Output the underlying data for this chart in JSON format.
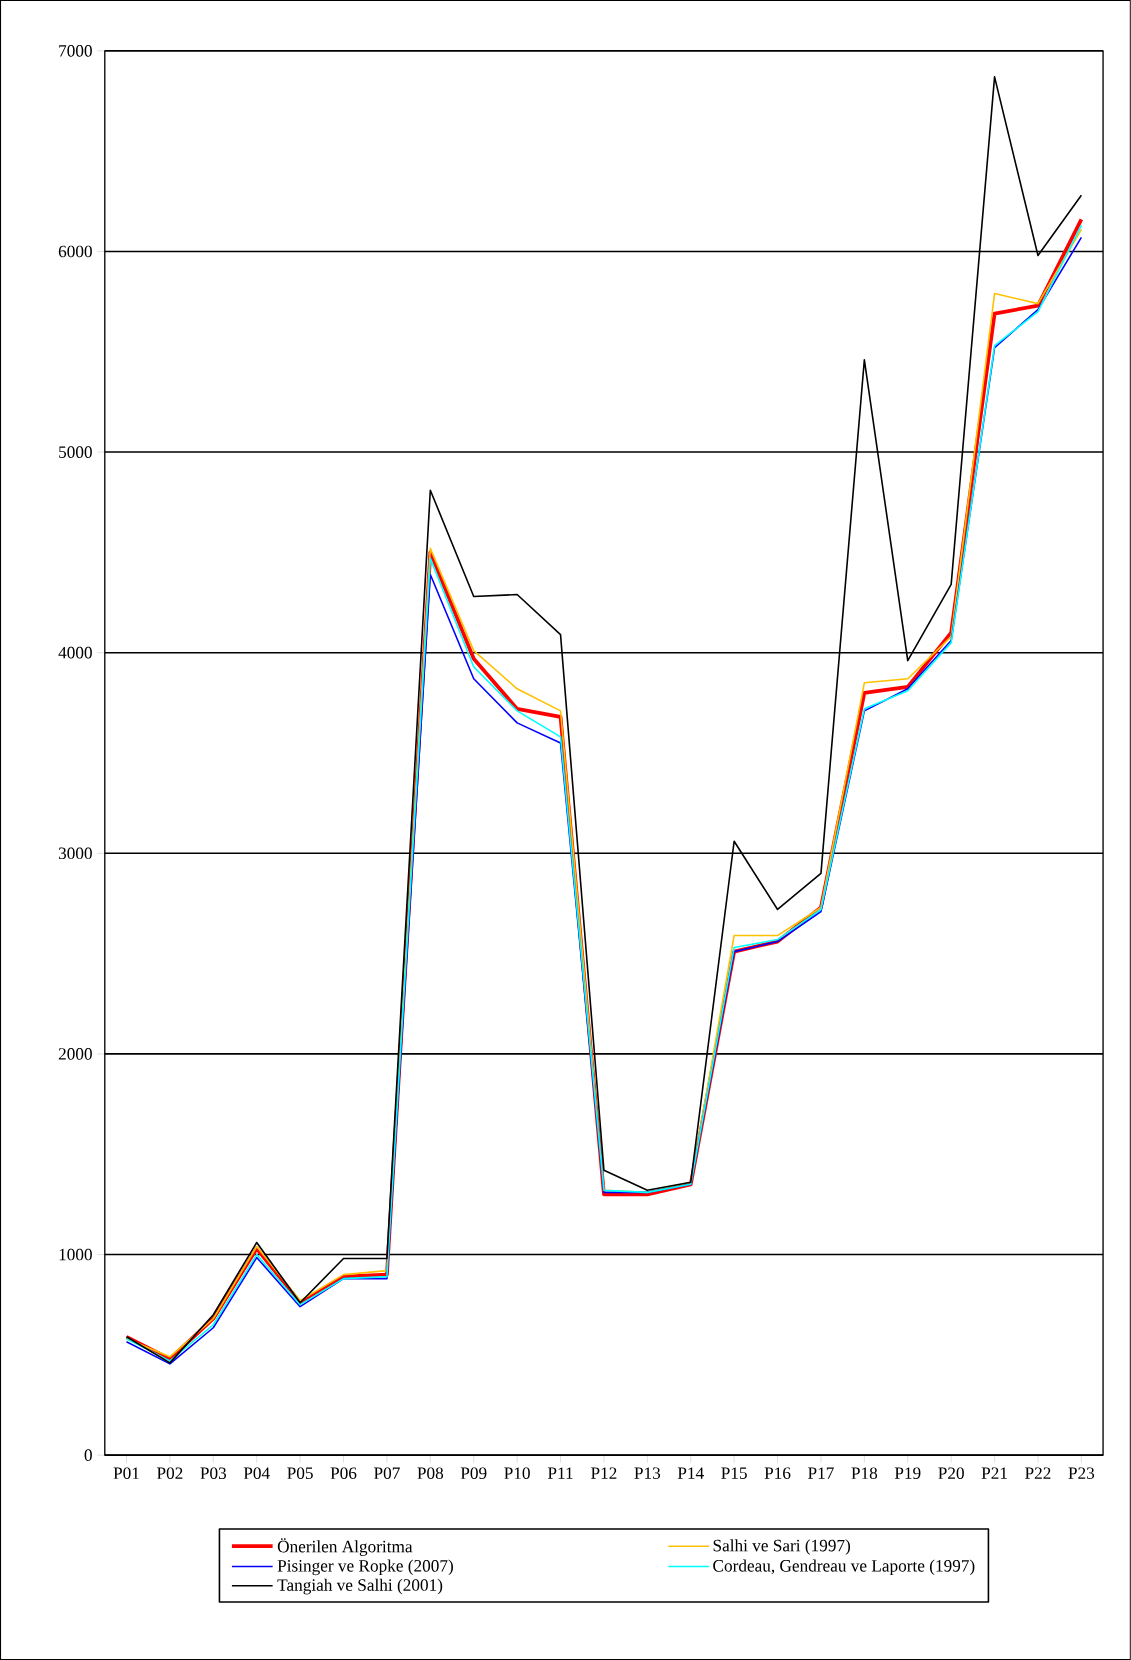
{
  "chart_data": {
    "type": "line",
    "categories": [
      "P01",
      "P02",
      "P03",
      "P04",
      "P05",
      "P06",
      "P07",
      "P08",
      "P09",
      "P10",
      "P11",
      "P12",
      "P13",
      "P14",
      "P15",
      "P16",
      "P17",
      "P18",
      "P19",
      "P20",
      "P21",
      "P22",
      "P23"
    ],
    "series": [
      {
        "name": "Önerilen Algoritma",
        "color": "#ff0000",
        "values": [
          590,
          480,
          680,
          1030,
          760,
          890,
          900,
          4500,
          3970,
          3720,
          3680,
          1300,
          1300,
          1350,
          2510,
          2560,
          2730,
          3800,
          3830,
          4100,
          5690,
          5730,
          6160
        ]
      },
      {
        "name": "Salhi ve Sari (1997)",
        "color": "#ffc000",
        "values": [
          580,
          490,
          680,
          1040,
          770,
          900,
          920,
          4520,
          4010,
          3820,
          3710,
          1320,
          1310,
          1360,
          2590,
          2590,
          2730,
          3850,
          3870,
          4080,
          5790,
          5740,
          6110
        ]
      },
      {
        "name": "Pisinger ve Ropke (2007)",
        "color": "#0000ff",
        "values": [
          565,
          455,
          635,
          985,
          740,
          880,
          880,
          4390,
          3870,
          3650,
          3550,
          1310,
          1310,
          1350,
          2510,
          2560,
          2710,
          3710,
          3820,
          4060,
          5520,
          5710,
          6070
        ]
      },
      {
        "name": "Cordeau, Gendreau ve Laporte (1997)",
        "color": "#00ffff",
        "values": [
          580,
          470,
          650,
          1000,
          750,
          880,
          890,
          4470,
          3930,
          3710,
          3580,
          1320,
          1310,
          1350,
          2530,
          2570,
          2720,
          3720,
          3810,
          4050,
          5530,
          5700,
          6130
        ]
      },
      {
        "name": "Tangiah ve Salhi (2001)",
        "color": "#000000",
        "values": [
          590,
          460,
          700,
          1060,
          760,
          980,
          980,
          4810,
          4280,
          4290,
          4090,
          1420,
          1320,
          1360,
          3060,
          2720,
          2900,
          5460,
          3960,
          4340,
          6870,
          5980,
          6280
        ]
      }
    ],
    "ylim": [
      0,
      7000
    ],
    "yticks": [
      0,
      1000,
      2000,
      3000,
      4000,
      5000,
      6000,
      7000
    ],
    "grid": "y",
    "legend": "bottom",
    "marker": "none",
    "line_style": "solid"
  }
}
